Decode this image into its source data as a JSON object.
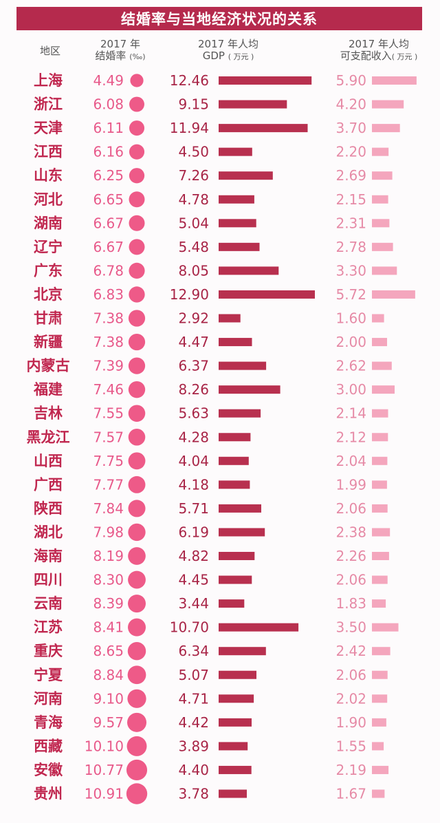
{
  "title": "结婚率与当地经济状况的关系",
  "headers": {
    "region": "地区",
    "rate_line1": "2017 年",
    "rate_line2": "结婚率",
    "rate_unit": "(‰)",
    "gdp_line1": "2017 年人均",
    "gdp_line2": "GDP",
    "gdp_unit": "( 万元 )",
    "inc_line1": "2017 年人均",
    "inc_line2": "可支配收入",
    "inc_unit": "( 万元 )"
  },
  "colors": {
    "title_bg": "#b52a4d",
    "region_text": "#c0274f",
    "rate_dot": "#ee5a88",
    "gdp_bar": "#b8304f",
    "income_bar": "#f4a6bd"
  },
  "chart_data": {
    "type": "table",
    "columns": [
      "地区",
      "2017 年结婚率(‰)",
      "2017 年人均GDP(万元)",
      "2017 年人均可支配收入(万元)"
    ],
    "rows": [
      {
        "region": "上海",
        "rate": "4.49",
        "gdp": "12.46",
        "income": "5.90"
      },
      {
        "region": "浙江",
        "rate": "6.08",
        "gdp": "9.15",
        "income": "4.20"
      },
      {
        "region": "天津",
        "rate": "6.11",
        "gdp": "11.94",
        "income": "3.70"
      },
      {
        "region": "江西",
        "rate": "6.16",
        "gdp": "4.50",
        "income": "2.20"
      },
      {
        "region": "山东",
        "rate": "6.25",
        "gdp": "7.26",
        "income": "2.69"
      },
      {
        "region": "河北",
        "rate": "6.65",
        "gdp": "4.78",
        "income": "2.15"
      },
      {
        "region": "湖南",
        "rate": "6.67",
        "gdp": "5.04",
        "income": "2.31"
      },
      {
        "region": "辽宁",
        "rate": "6.67",
        "gdp": "5.48",
        "income": "2.78"
      },
      {
        "region": "广东",
        "rate": "6.78",
        "gdp": "8.05",
        "income": "3.30"
      },
      {
        "region": "北京",
        "rate": "6.83",
        "gdp": "12.90",
        "income": "5.72"
      },
      {
        "region": "甘肃",
        "rate": "7.38",
        "gdp": "2.92",
        "income": "1.60"
      },
      {
        "region": "新疆",
        "rate": "7.38",
        "gdp": "4.47",
        "income": "2.00"
      },
      {
        "region": "内蒙古",
        "rate": "7.39",
        "gdp": "6.37",
        "income": "2.62"
      },
      {
        "region": "福建",
        "rate": "7.46",
        "gdp": "8.26",
        "income": "3.00"
      },
      {
        "region": "吉林",
        "rate": "7.55",
        "gdp": "5.63",
        "income": "2.14"
      },
      {
        "region": "黑龙江",
        "rate": "7.57",
        "gdp": "4.28",
        "income": "2.12"
      },
      {
        "region": "山西",
        "rate": "7.75",
        "gdp": "4.04",
        "income": "2.04"
      },
      {
        "region": "广西",
        "rate": "7.77",
        "gdp": "4.18",
        "income": "1.99"
      },
      {
        "region": "陕西",
        "rate": "7.84",
        "gdp": "5.71",
        "income": "2.06"
      },
      {
        "region": "湖北",
        "rate": "7.98",
        "gdp": "6.19",
        "income": "2.38"
      },
      {
        "region": "海南",
        "rate": "8.19",
        "gdp": "4.82",
        "income": "2.26"
      },
      {
        "region": "四川",
        "rate": "8.30",
        "gdp": "4.45",
        "income": "2.06"
      },
      {
        "region": "云南",
        "rate": "8.39",
        "gdp": "3.44",
        "income": "1.83"
      },
      {
        "region": "江苏",
        "rate": "8.41",
        "gdp": "10.70",
        "income": "3.50"
      },
      {
        "region": "重庆",
        "rate": "8.65",
        "gdp": "6.34",
        "income": "2.42"
      },
      {
        "region": "宁夏",
        "rate": "8.84",
        "gdp": "5.07",
        "income": "2.06"
      },
      {
        "region": "河南",
        "rate": "9.10",
        "gdp": "4.71",
        "income": "2.02"
      },
      {
        "region": "青海",
        "rate": "9.57",
        "gdp": "4.42",
        "income": "1.90"
      },
      {
        "region": "西藏",
        "rate": "10.10",
        "gdp": "3.89",
        "income": "1.55"
      },
      {
        "region": "安徽",
        "rate": "10.77",
        "gdp": "4.40",
        "income": "2.19"
      },
      {
        "region": "贵州",
        "rate": "10.91",
        "gdp": "3.78",
        "income": "1.67"
      }
    ]
  }
}
